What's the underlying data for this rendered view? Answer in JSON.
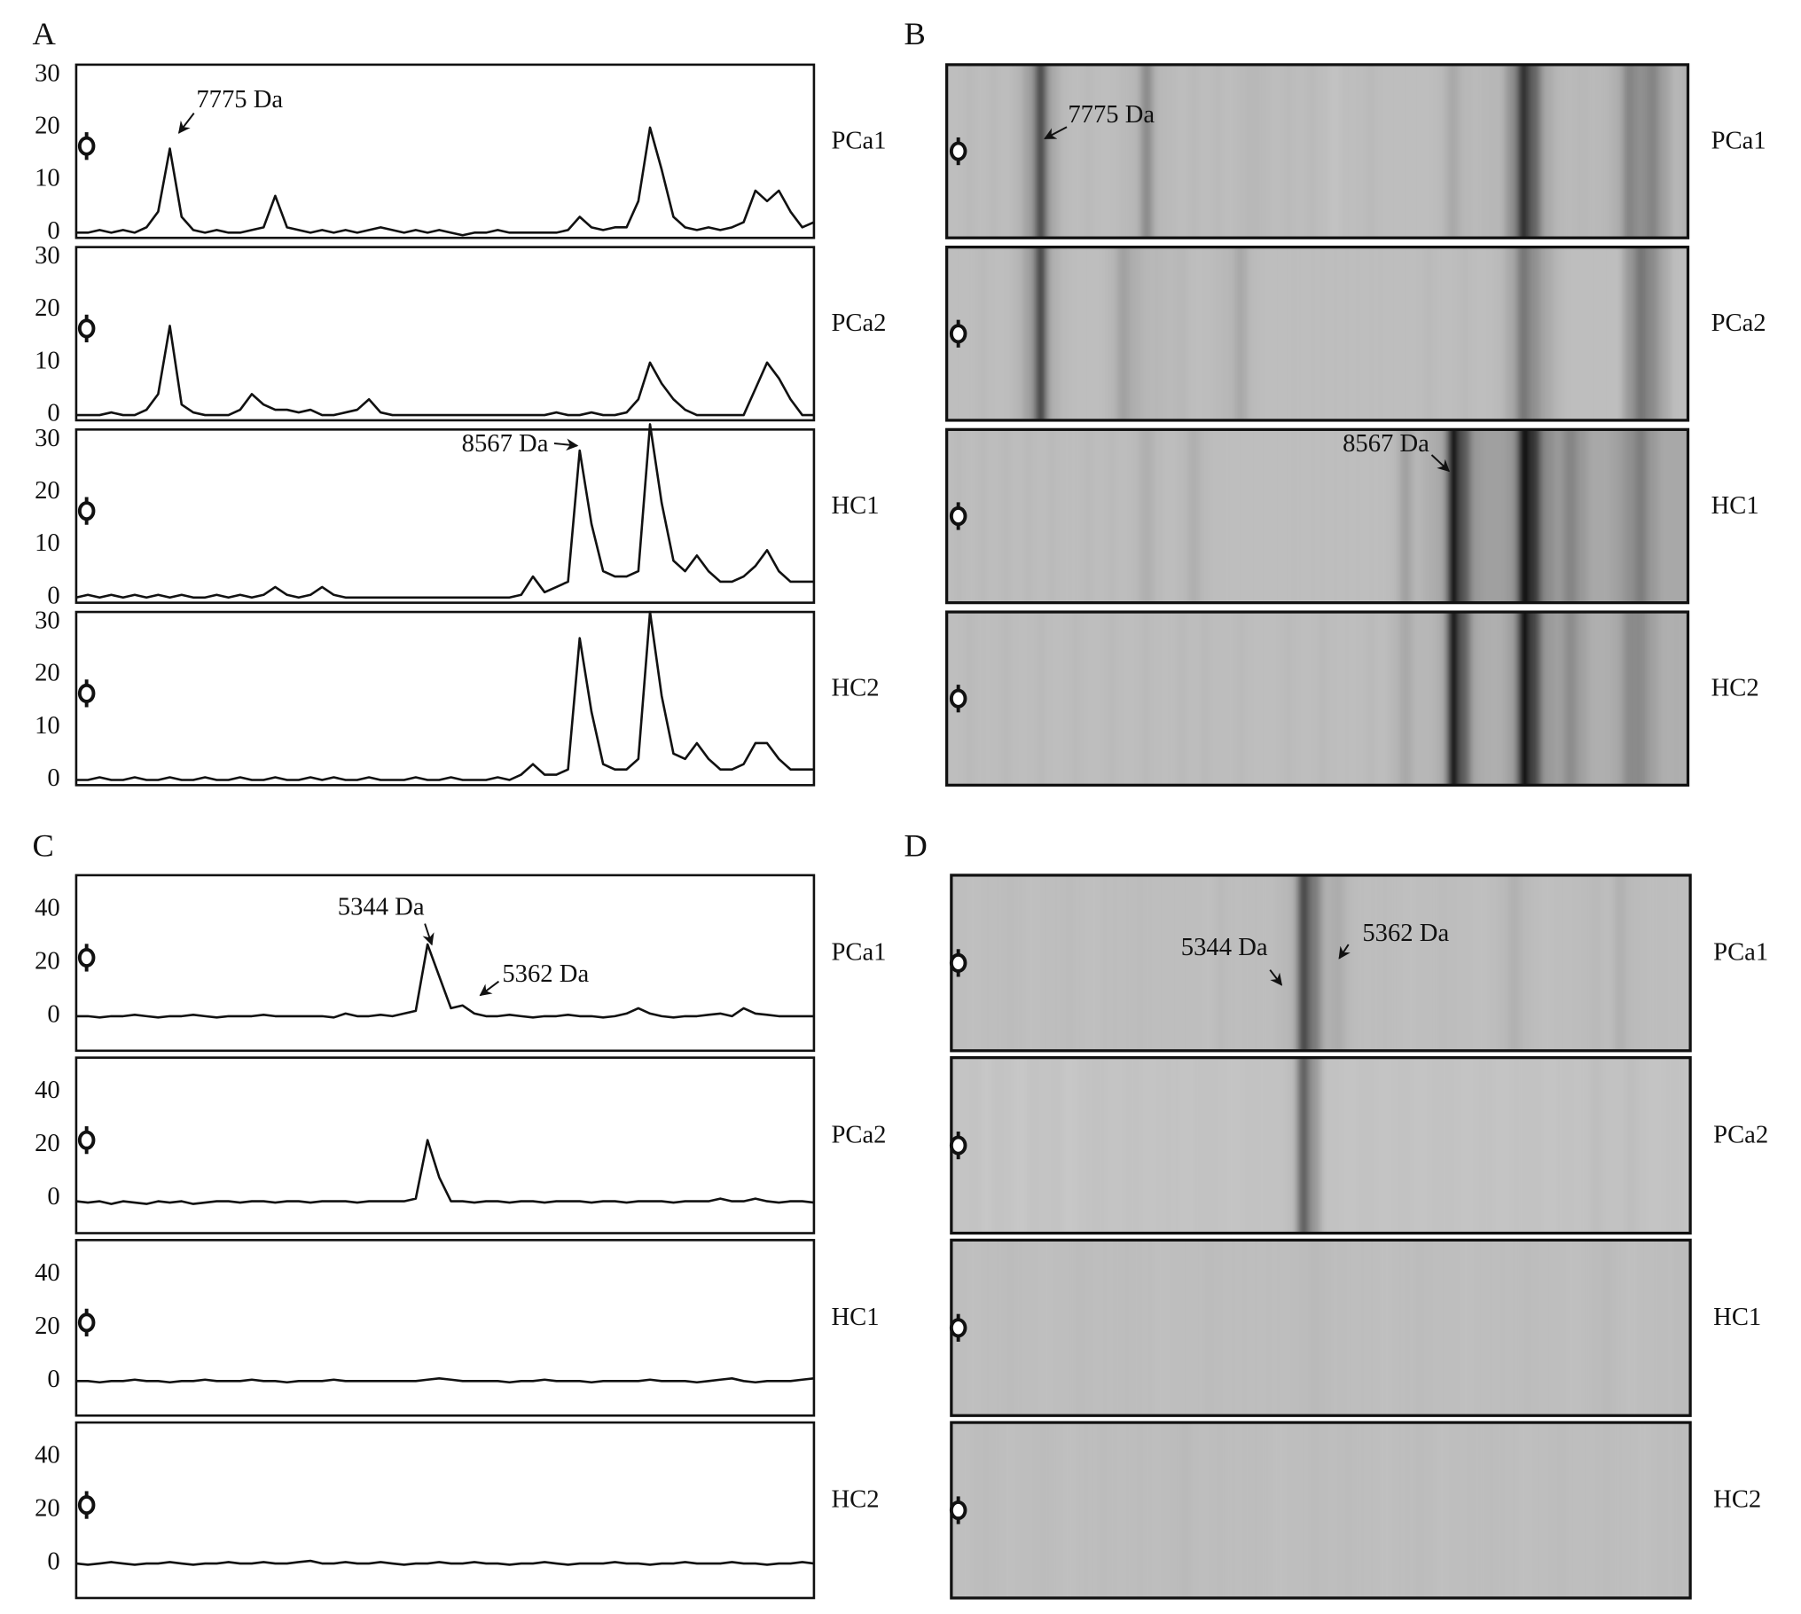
{
  "chart_data": [
    {
      "type": "line",
      "panel_label": "A",
      "ylim": [
        -1,
        32
      ],
      "yticks": [
        0,
        10,
        20,
        30
      ],
      "series": [
        {
          "name": "PCa1",
          "values": [
            0,
            0,
            0.5,
            0,
            0.5,
            0,
            1,
            4,
            16,
            3,
            0.5,
            0,
            0.5,
            0,
            0,
            0.5,
            1,
            7,
            1,
            0.5,
            0,
            0.5,
            0,
            0.5,
            0,
            0.5,
            1,
            0.5,
            0,
            0.5,
            0,
            0.5,
            0,
            -0.5,
            0,
            0,
            0.5,
            0,
            0,
            0,
            0,
            0,
            0.5,
            3,
            1,
            0.5,
            1,
            1,
            6,
            20,
            12,
            3,
            1,
            0.5,
            1,
            0.5,
            1,
            2,
            8,
            6,
            8,
            4,
            1,
            2
          ]
        },
        {
          "name": "PCa2",
          "values": [
            0,
            0,
            0,
            0.5,
            0,
            0,
            1,
            4,
            17,
            2,
            0.5,
            0,
            0,
            0,
            1,
            4,
            2,
            1,
            1,
            0.5,
            1,
            0,
            0,
            0.5,
            1,
            3,
            0.5,
            0,
            0,
            0,
            0,
            0,
            0,
            0,
            0,
            0,
            0,
            0,
            0,
            0,
            0,
            0.5,
            0,
            0,
            0.5,
            0,
            0,
            0.5,
            3,
            10,
            6,
            3,
            1,
            0,
            0,
            0,
            0,
            0,
            5,
            10,
            7,
            3,
            0,
            0
          ]
        },
        {
          "name": "HC1",
          "values": [
            0,
            0.5,
            0,
            0.5,
            0,
            0.5,
            0,
            0.5,
            0,
            0.5,
            0,
            0,
            0.5,
            0,
            0.5,
            0,
            0.5,
            2,
            0.5,
            0,
            0.5,
            2,
            0.5,
            0,
            0,
            0,
            0,
            0,
            0,
            0,
            0,
            0,
            0,
            0,
            0,
            0,
            0,
            0,
            0.5,
            4,
            1,
            2,
            3,
            28,
            14,
            5,
            4,
            4,
            5,
            33,
            18,
            7,
            5,
            8,
            5,
            3,
            3,
            4,
            6,
            9,
            5,
            3,
            3,
            3
          ]
        },
        {
          "name": "HC2",
          "values": [
            0,
            0,
            0.5,
            0,
            0,
            0.5,
            0,
            0,
            0.5,
            0,
            0,
            0.5,
            0,
            0,
            0.5,
            0,
            0,
            0.5,
            0,
            0,
            0.5,
            0,
            0.5,
            0,
            0,
            0.5,
            0,
            0,
            0,
            0.5,
            0,
            0,
            0.5,
            0,
            0,
            0,
            0.5,
            0,
            1,
            3,
            1,
            1,
            2,
            27,
            13,
            3,
            2,
            2,
            4,
            32,
            16,
            5,
            4,
            7,
            4,
            2,
            2,
            3,
            7,
            7,
            4,
            2,
            2,
            2
          ]
        }
      ],
      "annotations": [
        "7775 Da",
        "8567 Da"
      ]
    },
    {
      "type": "gel",
      "panel_label": "B",
      "samples": [
        "PCa1",
        "PCa2",
        "HC1",
        "HC2"
      ],
      "annotations": [
        "7775 Da",
        "8567 Da"
      ]
    },
    {
      "type": "line",
      "panel_label": "C",
      "ylim": [
        -13,
        53
      ],
      "yticks": [
        0,
        20,
        40
      ],
      "series": [
        {
          "name": "PCa1",
          "values": [
            0,
            0,
            -0.5,
            0,
            0,
            0.5,
            0,
            -0.5,
            0,
            0,
            0.5,
            0,
            -0.5,
            0,
            0,
            0,
            0.5,
            0,
            0,
            0,
            0,
            0,
            -0.5,
            1,
            0,
            0,
            0.5,
            0,
            1,
            2,
            27,
            15,
            3,
            4,
            1,
            0,
            0,
            0.5,
            0,
            -0.5,
            0,
            0,
            0.5,
            0,
            0,
            -0.5,
            0,
            1,
            3,
            1,
            0,
            -0.5,
            0,
            0,
            0.5,
            1,
            0,
            3,
            1,
            0.5,
            0,
            0,
            0,
            0
          ]
        },
        {
          "name": "PCa2",
          "values": [
            -1,
            -1.5,
            -1,
            -2,
            -1,
            -1.5,
            -2,
            -1,
            -1.5,
            -1,
            -2,
            -1.5,
            -1,
            -1,
            -1.5,
            -1,
            -1,
            -1.5,
            -1,
            -1,
            -1.5,
            -1,
            -1,
            -1,
            -1.5,
            -1,
            -1,
            -1,
            -1,
            0,
            22,
            8,
            -1,
            -1,
            -1.5,
            -1,
            -1,
            -1.5,
            -1,
            -1,
            -1.5,
            -1,
            -1,
            -1,
            -1.5,
            -1,
            -1,
            -1.5,
            -1,
            -1,
            -1,
            -1.5,
            -1,
            -1,
            -1,
            0,
            -1,
            -1,
            0,
            -1,
            -1.5,
            -1,
            -1,
            -1.5
          ]
        },
        {
          "name": "HC1",
          "values": [
            0,
            0,
            -0.5,
            0,
            0,
            0.5,
            0,
            0,
            -0.5,
            0,
            0,
            0.5,
            0,
            0,
            0,
            0.5,
            0,
            0,
            -0.5,
            0,
            0,
            0,
            0.5,
            0,
            0,
            0,
            0,
            0,
            0,
            0,
            0.5,
            1,
            0.5,
            0,
            0,
            0,
            0,
            -0.5,
            0,
            0,
            0.5,
            0,
            0,
            0,
            -0.5,
            0,
            0,
            0,
            0,
            0.5,
            0,
            0,
            0,
            -0.5,
            0,
            0.5,
            1,
            0,
            -0.5,
            0,
            0,
            0,
            0.5,
            1
          ]
        },
        {
          "name": "HC2",
          "values": [
            0,
            -0.5,
            0,
            0.5,
            0,
            -0.5,
            0,
            0,
            0.5,
            0,
            -0.5,
            0,
            0,
            0.5,
            0,
            0,
            0.5,
            0,
            0,
            0.5,
            1,
            0,
            0,
            0.5,
            0,
            0,
            0.5,
            0,
            -0.5,
            0,
            0,
            0.5,
            0,
            0,
            0.5,
            0,
            0,
            -0.5,
            0,
            0,
            0.5,
            0,
            -0.5,
            0,
            0,
            0,
            0.5,
            0,
            0,
            -0.5,
            0,
            0,
            0.5,
            0,
            0,
            0,
            0.5,
            0,
            0,
            -0.5,
            0,
            0,
            0.5,
            0
          ]
        }
      ],
      "annotations": [
        "5344 Da",
        "5362 Da"
      ]
    },
    {
      "type": "gel",
      "panel_label": "D",
      "samples": [
        "PCa1",
        "PCa2",
        "HC1",
        "HC2"
      ],
      "annotations": [
        "5344 Da",
        "5362 Da"
      ]
    }
  ]
}
